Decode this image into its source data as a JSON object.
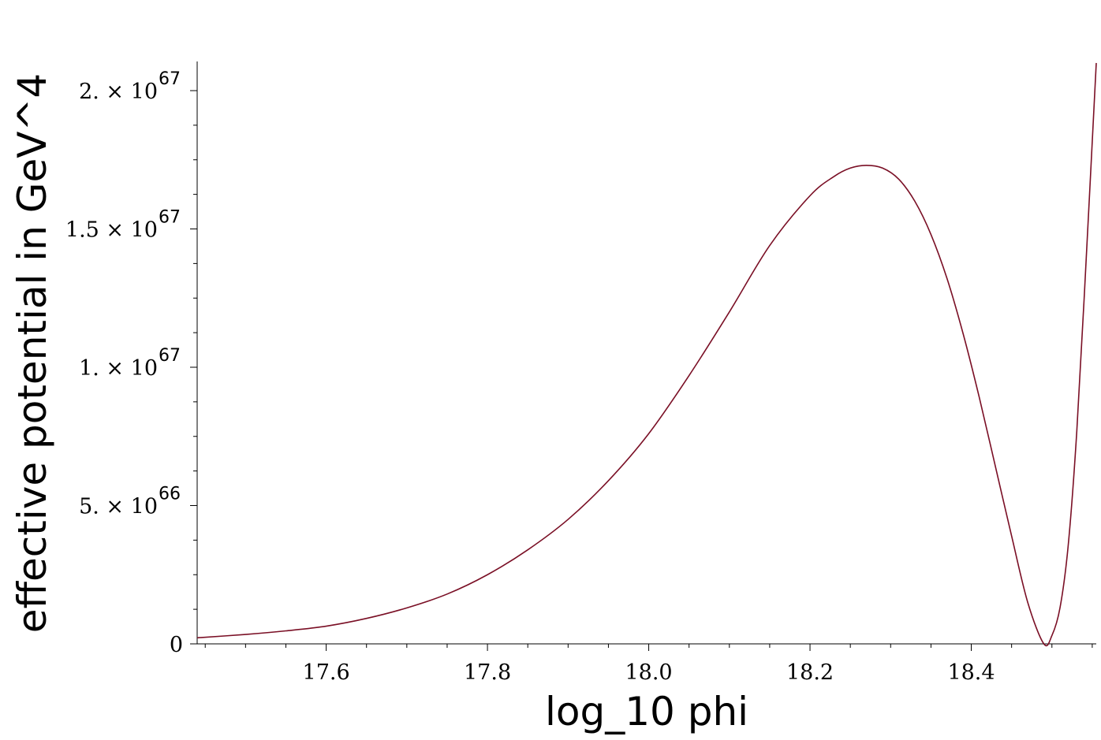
{
  "chart_data": {
    "type": "line",
    "title": "",
    "xlabel": "log_10 phi",
    "ylabel": "effective potential in GeV^4",
    "xlim": [
      17.44,
      18.555
    ],
    "ylim": [
      0,
      2.1e+67
    ],
    "grid": false,
    "x_ticks": [
      {
        "value": 17.6,
        "label": "17.6"
      },
      {
        "value": 17.8,
        "label": "17.8"
      },
      {
        "value": 18.0,
        "label": "18.0"
      },
      {
        "value": 18.2,
        "label": "18.2"
      },
      {
        "value": 18.4,
        "label": "18.4"
      }
    ],
    "y_ticks": [
      {
        "value": 0,
        "label": "0",
        "exponent": ""
      },
      {
        "value": 5e+66,
        "label": "5. × 10",
        "exponent": "66"
      },
      {
        "value": 1e+67,
        "label": "1. × 10",
        "exponent": "67"
      },
      {
        "value": 1.5e+67,
        "label": "1.5 × 10",
        "exponent": "67"
      },
      {
        "value": 2e+67,
        "label": "2. × 10",
        "exponent": "67"
      }
    ],
    "series": [
      {
        "color": "#7a0f25",
        "x": [
          17.44,
          17.5,
          17.55,
          17.6,
          17.65,
          17.7,
          17.75,
          17.8,
          17.85,
          17.9,
          17.95,
          18.0,
          18.05,
          18.1,
          18.15,
          18.2,
          18.23,
          18.25,
          18.27,
          18.29,
          18.31,
          18.33,
          18.35,
          18.37,
          18.39,
          18.41,
          18.43,
          18.45,
          18.47,
          18.49,
          18.5,
          18.51,
          18.52,
          18.53,
          18.54,
          18.555
        ],
        "y": [
          2.2e+65,
          3.4e+65,
          4.7e+65,
          6.4e+65,
          9.2e+65,
          1.3e+66,
          1.8e+66,
          2.5e+66,
          3.4e+66,
          4.5e+66,
          5.9e+66,
          7.6e+66,
          9.7e+66,
          1.2e+67,
          1.44e+67,
          1.62e+67,
          1.69e+67,
          1.72e+67,
          1.73e+67,
          1.72e+67,
          1.68e+67,
          1.6e+67,
          1.48e+67,
          1.32e+67,
          1.12e+67,
          8.9e+66,
          6.4e+66,
          3.9e+66,
          1.5e+66,
          0,
          3e+65,
          1.3e+66,
          3.5e+66,
          7.3e+66,
          1.25e+67,
          2.1e+67
        ]
      }
    ]
  }
}
